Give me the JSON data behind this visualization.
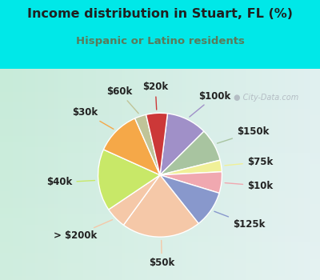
{
  "title": "Income distribution in Stuart, FL (%)",
  "subtitle": "Hispanic or Latino residents",
  "labels": [
    "$100k",
    "$150k",
    "$75k",
    "$10k",
    "$125k",
    "$50k",
    "> $200k",
    "$40k",
    "$30k",
    "$60k",
    "$20k"
  ],
  "sizes": [
    10.5,
    8.5,
    3.0,
    5.5,
    9.5,
    20.5,
    5.5,
    16.0,
    11.5,
    3.0,
    5.5
  ],
  "colors": [
    "#a090c8",
    "#a8c4a0",
    "#f0f098",
    "#f0a8b0",
    "#8898cc",
    "#f5c8a8",
    "#f5c8a8",
    "#c8e868",
    "#f5a848",
    "#c0c498",
    "#cc3838"
  ],
  "line_colors": [
    "#a090c8",
    "#a8c4a0",
    "#f0f098",
    "#f0a8b0",
    "#8898cc",
    "#f5c8a8",
    "#f5c8a8",
    "#c8e868",
    "#f5a848",
    "#c0c498",
    "#cc3838"
  ],
  "bg_cyan": "#00e8e8",
  "bg_chart_left": "#c8e8d8",
  "bg_chart_right": "#d0e8f0",
  "title_color": "#202020",
  "subtitle_color": "#5a7a5a",
  "watermark": "City-Data.com",
  "startangle": 83,
  "title_fontsize": 11.5,
  "subtitle_fontsize": 9.5,
  "label_fontsize": 8.5
}
